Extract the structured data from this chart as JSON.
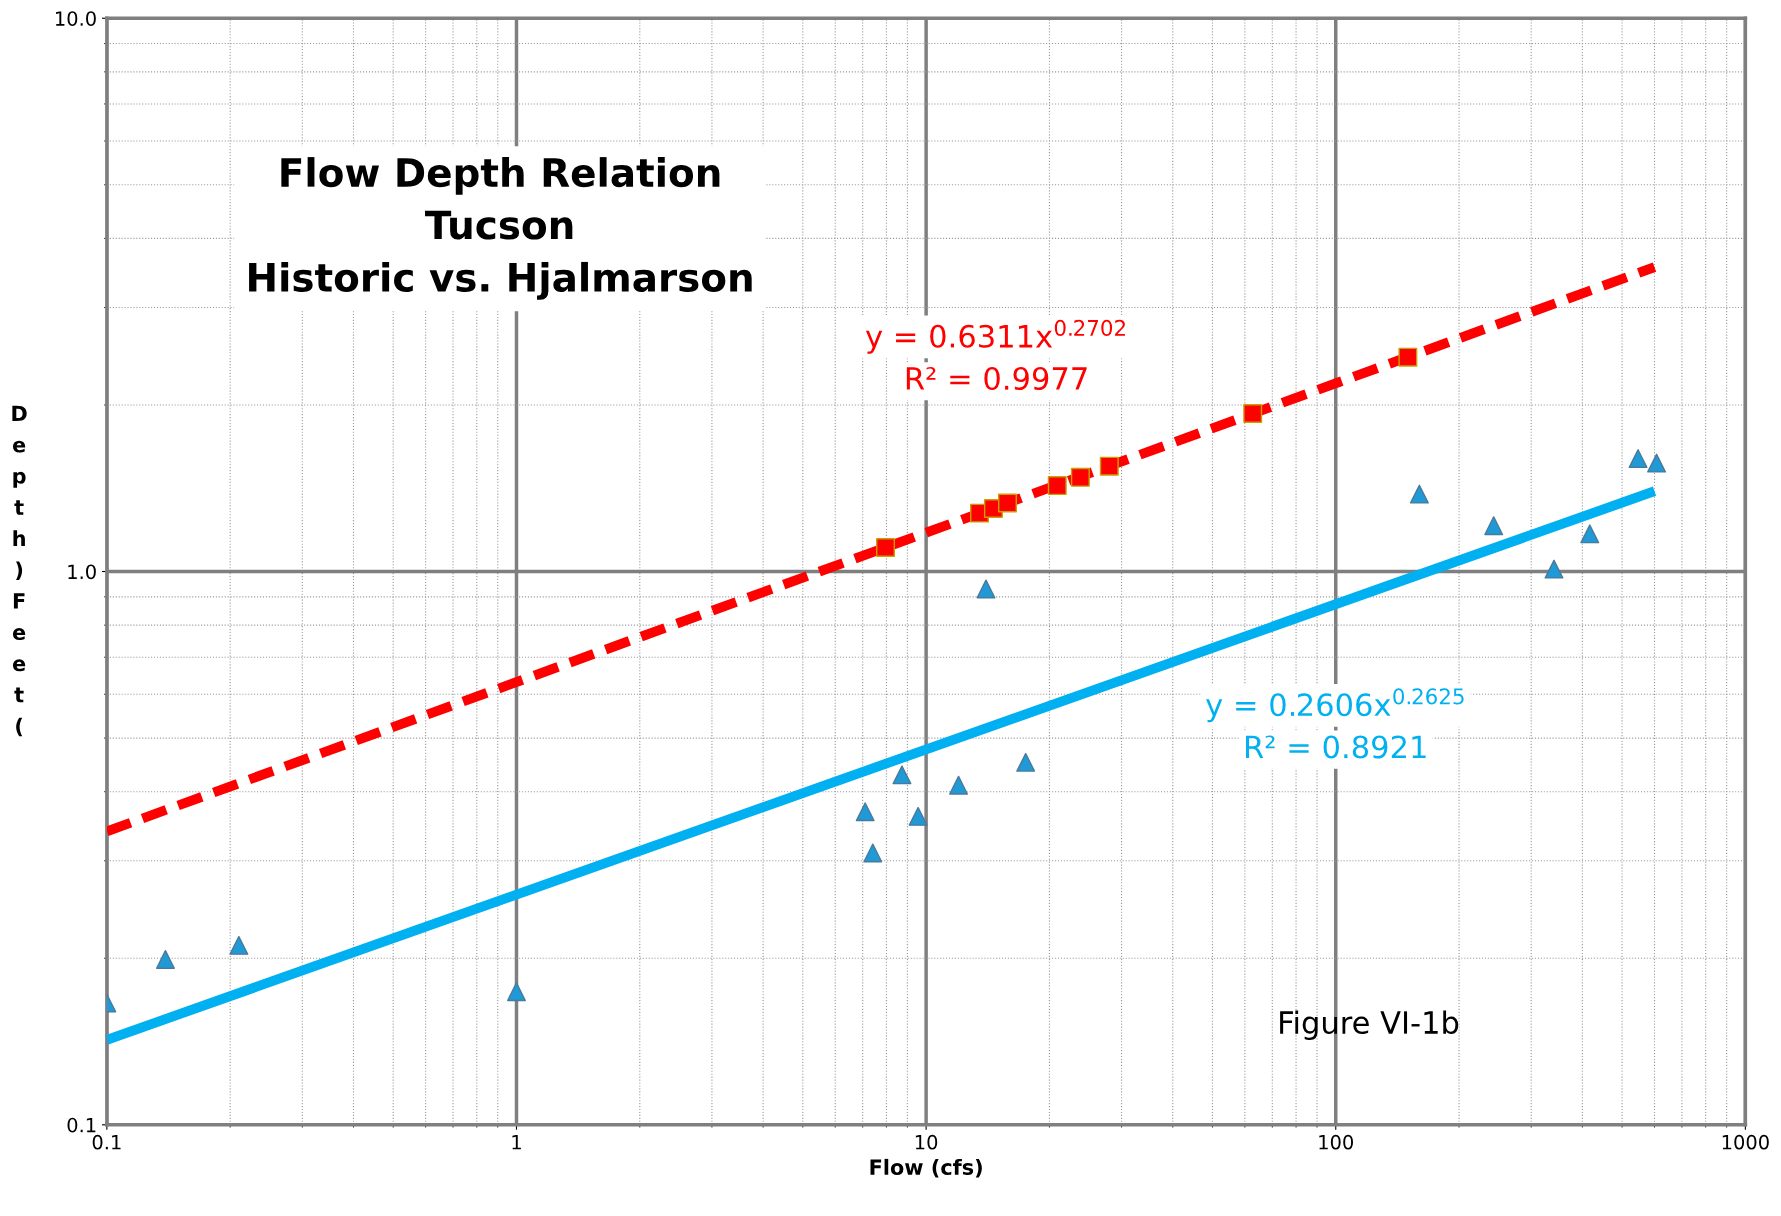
{
  "chart_data": {
    "type": "scatter",
    "title": "Flow Depth Relation\nTucson\nHistoric vs. Hjalmarson",
    "xlabel": "Flow (cfs)",
    "ylabel": "Depth )Feet(",
    "log": "xy",
    "grid": true,
    "xlim": [
      0.1,
      1000
    ],
    "ylim": [
      0.1,
      10
    ],
    "xticks": [
      0.1,
      1,
      10,
      100,
      1000
    ],
    "yticks": [
      {
        "value": 0.1,
        "label": "0.1"
      },
      {
        "value": 1,
        "label": "1.0"
      },
      {
        "value": 10,
        "label": "10.0"
      }
    ],
    "series": [
      {
        "type": "line",
        "color": "#ff0000",
        "line_style": "dashed",
        "marker": "none",
        "x": [
          0.1,
          600
        ],
        "values": [
          0.339,
          3.55
        ]
      },
      {
        "type": "line",
        "color": "#00b0f0",
        "line_style": "solid",
        "marker": "none",
        "x": [
          0.1,
          600
        ],
        "values": [
          0.1424,
          1.397
        ]
      },
      {
        "color": "#1f9ad6",
        "marker": "triangle",
        "x": [
          0.1,
          0.139,
          0.21,
          1,
          7.1,
          7.41,
          8.73,
          9.56,
          12.0,
          14.0,
          17.5,
          160,
          243,
          341,
          417,
          547,
          607
        ],
        "values": [
          0.166,
          0.199,
          0.211,
          0.174,
          0.368,
          0.31,
          0.429,
          0.361,
          0.411,
          0.93,
          0.452,
          1.38,
          1.21,
          1.01,
          1.17,
          1.6,
          1.57
        ]
      },
      {
        "color": "#ff0000",
        "marker": "square",
        "x": [
          7.96,
          13.5,
          14.6,
          15.8,
          20.9,
          23.8,
          28.0,
          62.7,
          150
        ],
        "values": [
          1.105,
          1.275,
          1.3,
          1.33,
          1.43,
          1.48,
          1.55,
          1.93,
          2.44
        ]
      }
    ],
    "annotations": [
      "y = 0.6311x$^{0.2702}$",
      "R² = 0.9977",
      "y = 0.2606x$^{0.2625}$",
      "R² = 0.8921",
      "Figure VI-1b"
    ]
  }
}
